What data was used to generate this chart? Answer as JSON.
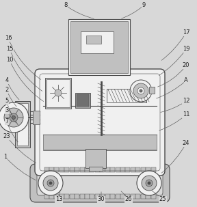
{
  "bg_color": "#d8d8d8",
  "lc": "#4a4a4a",
  "fill_light": "#c0c0c0",
  "fill_mid": "#a0a0a0",
  "fill_dark": "#707070",
  "fill_white": "#f0f0f0",
  "fill_bg": "#d8d8d8"
}
